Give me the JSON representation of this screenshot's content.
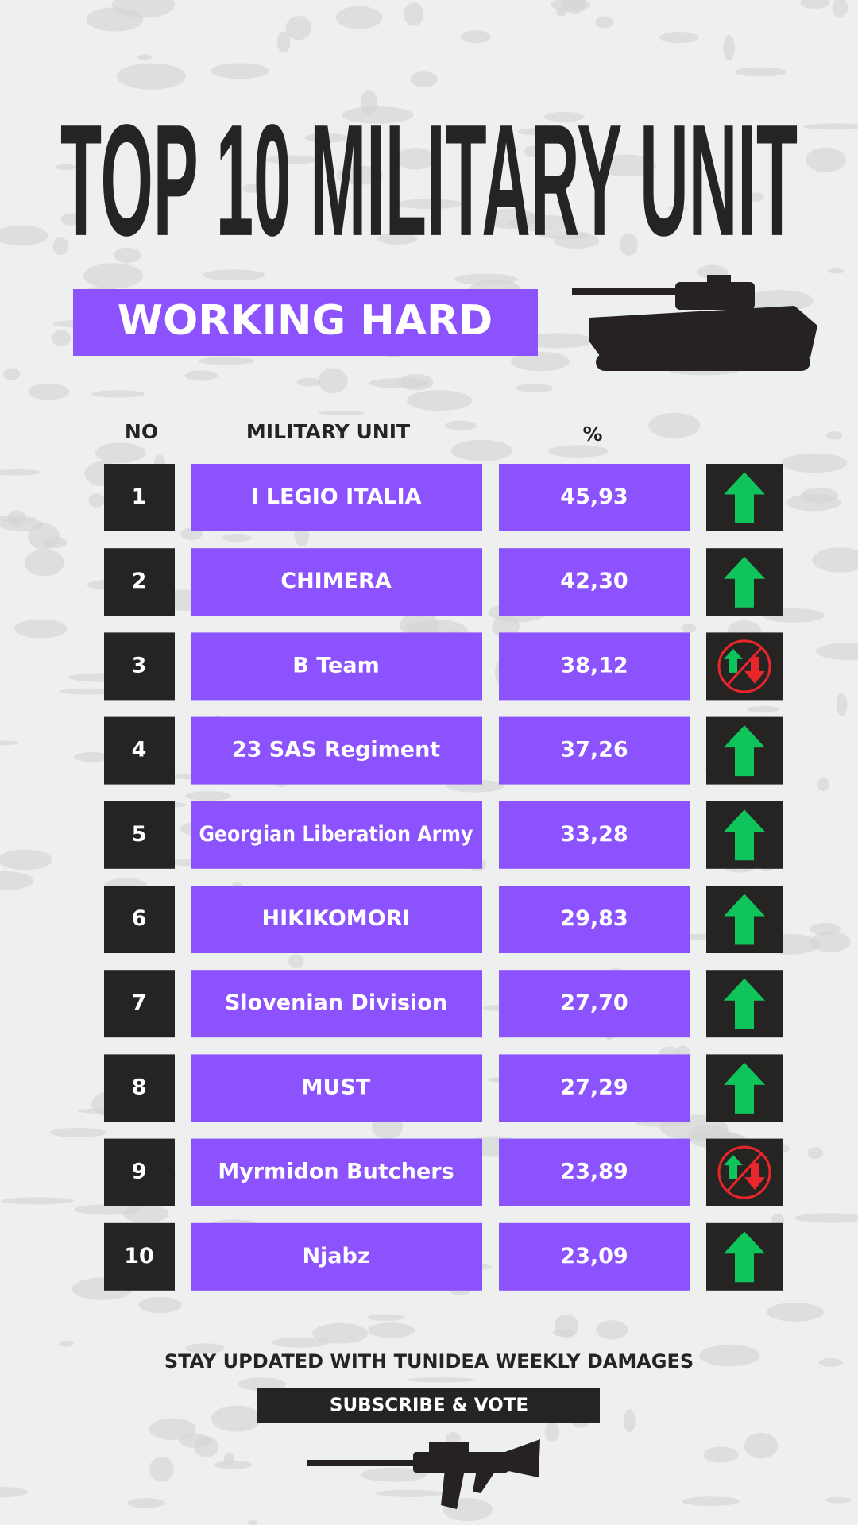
{
  "header": {
    "title": "TOP 10 MILITARY UNIT",
    "subtitle": "WORKING HARD"
  },
  "table": {
    "columns": [
      "NO",
      "MILITARY UNIT",
      "%"
    ],
    "rows": [
      [
        "1",
        "I LEGIO ITALIA",
        "45,93"
      ],
      [
        "2",
        "CHIMERA",
        "42,30"
      ],
      [
        "3",
        "B Team",
        "38,12"
      ],
      [
        "4",
        "23 SAS Regiment",
        "37,26"
      ],
      [
        "5",
        "Georgian Liberation Army",
        "33,28"
      ],
      [
        "6",
        "HIKIKOMORI",
        "29,83"
      ],
      [
        "7",
        "Slovenian Division",
        "27,70"
      ],
      [
        "8",
        "MUST",
        "27,29"
      ],
      [
        "9",
        "Myrmidon Butchers",
        "23,89"
      ],
      [
        "10",
        "Njabz",
        "23,09"
      ]
    ]
  },
  "footer": {
    "text": "STAY UPDATED WITH TUNIDEA WEEKLY DAMAGES",
    "button": "SUBSCRIBE & VOTE"
  }
}
